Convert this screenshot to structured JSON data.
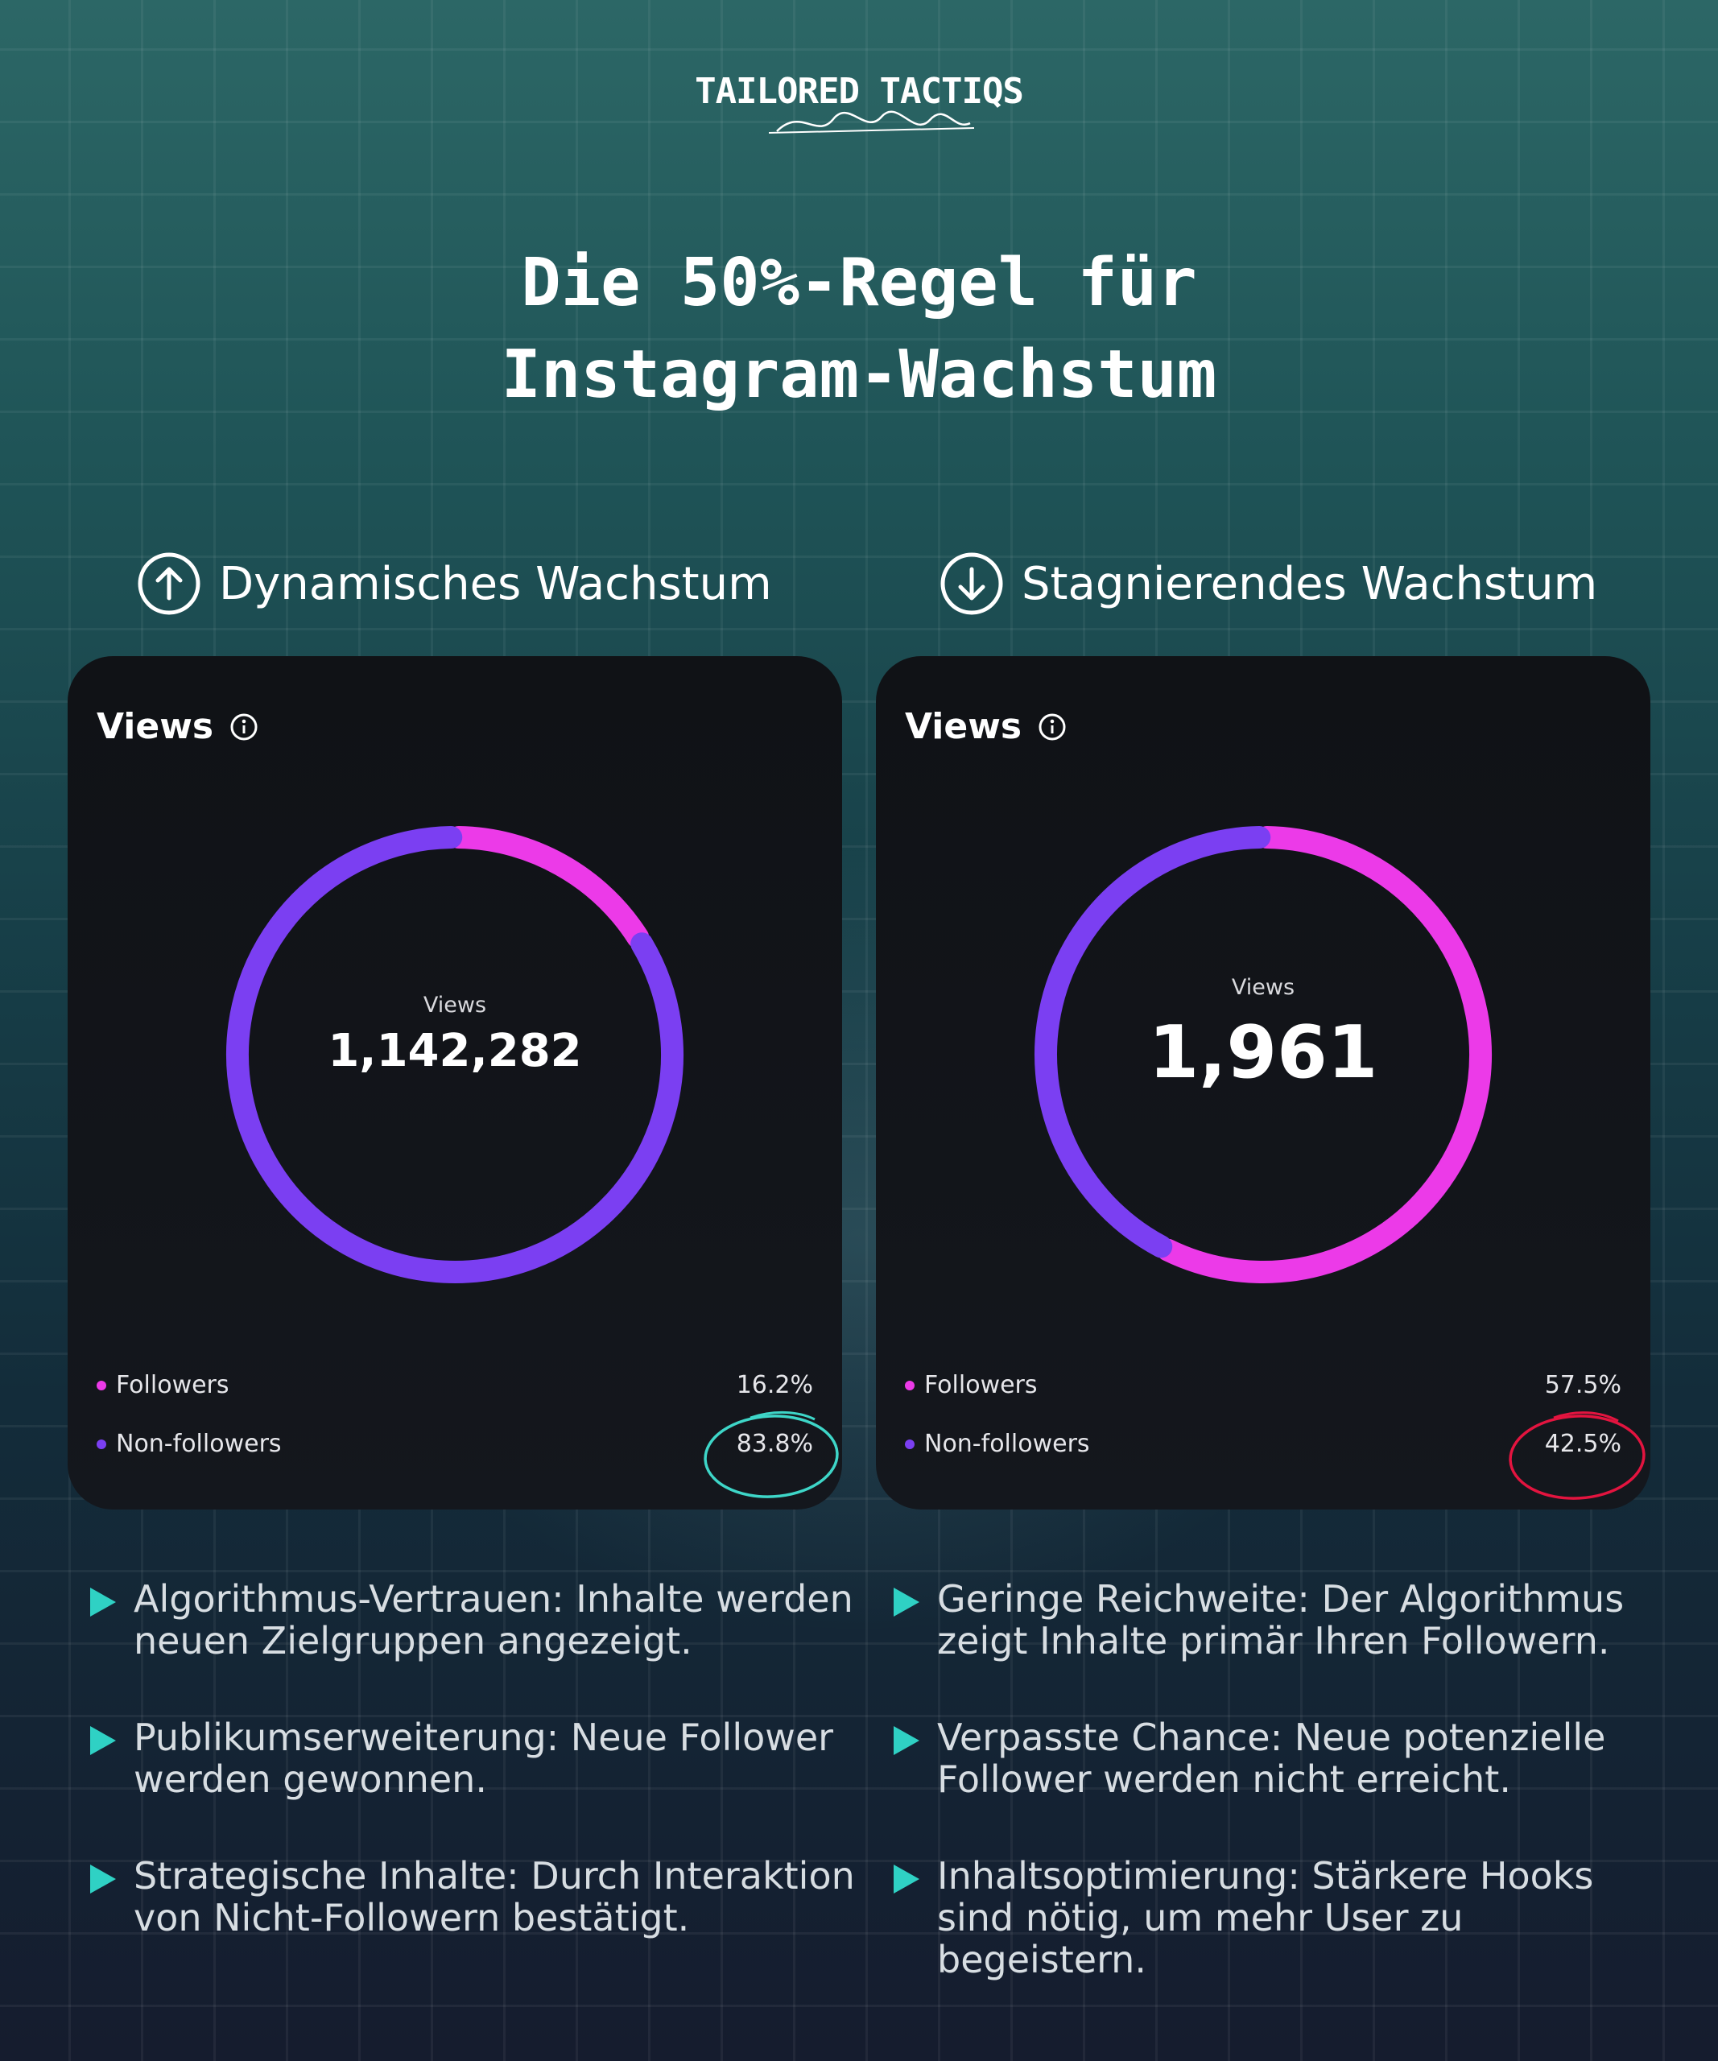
{
  "brand": {
    "name": "TAILORED TACTIQS"
  },
  "title": {
    "line1": "Die 50%-Regel für",
    "line2": "Instagram-Wachstum"
  },
  "colors": {
    "followers": "#ec3ae8",
    "non_followers": "#7b3ff2",
    "good_mark": "#3ed6c8",
    "bad_mark": "#e3143f",
    "bullet": "#2fd1c4"
  },
  "left": {
    "heading": "Dynamisches Wachstum",
    "icon": "arrow-up-circle-icon",
    "card": {
      "title": "Views",
      "center_label": "Views",
      "center_value": "1,142,282",
      "legend": [
        {
          "name": "Followers",
          "value": "16.2%"
        },
        {
          "name": "Non-followers",
          "value": "83.8%"
        }
      ]
    },
    "bullets": [
      "Algorithmus-Vertrauen: Inhalte werden neuen Zielgruppen angezeigt.",
      "Publikumserweiterung: Neue Follower werden gewonnen.",
      "Strategische Inhalte: Durch Interaktion von Nicht-Followern bestätigt."
    ]
  },
  "right": {
    "heading": "Stagnierendes Wachstum",
    "icon": "arrow-down-circle-icon",
    "card": {
      "title": "Views",
      "center_label": "Views",
      "center_value": "1,961",
      "legend": [
        {
          "name": "Followers",
          "value": "57.5%"
        },
        {
          "name": "Non-followers",
          "value": "42.5%"
        }
      ]
    },
    "bullets": [
      "Geringe Reichweite: Der Algorithmus zeigt Inhalte primär Ihren Followern.",
      "Verpasste Chance: Neue potenzielle Follower werden nicht erreicht.",
      "Inhaltsoptimierung: Stärkere Hooks sind nötig, um mehr User zu begeistern."
    ]
  },
  "chart_data": [
    {
      "type": "pie",
      "title": "Views",
      "total": 1142282,
      "categories": [
        "Followers",
        "Non-followers"
      ],
      "values": [
        16.2,
        83.8
      ]
    },
    {
      "type": "pie",
      "title": "Views",
      "total": 1961,
      "categories": [
        "Followers",
        "Non-followers"
      ],
      "values": [
        57.5,
        42.5
      ]
    }
  ]
}
